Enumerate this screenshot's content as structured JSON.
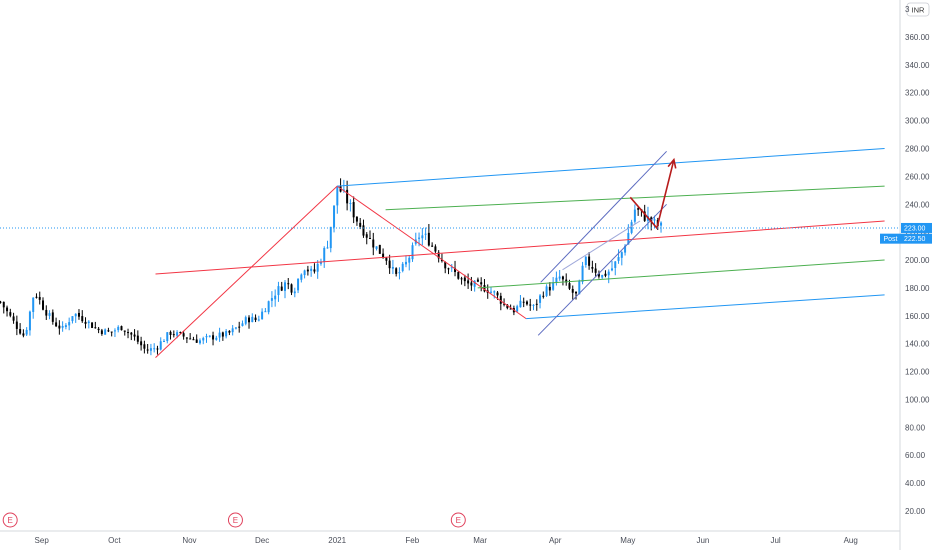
{
  "chart_data": {
    "type": "candlestick",
    "currency": "INR",
    "y_axis": {
      "range": [
        10,
        390
      ],
      "ticks": [
        "20.00",
        "40.00",
        "60.00",
        "80.00",
        "100.00",
        "120.00",
        "140.00",
        "160.00",
        "180.00",
        "200.00",
        "220.00",
        "240.00",
        "260.00",
        "280.00",
        "300.00",
        "320.00",
        "340.00",
        "360.00"
      ],
      "tick_values": [
        20,
        40,
        60,
        80,
        100,
        120,
        140,
        160,
        180,
        200,
        220,
        240,
        260,
        280,
        300,
        320,
        340,
        360
      ],
      "top_label": "3"
    },
    "x_axis": {
      "labels": [
        "Sep",
        "Oct",
        "Nov",
        "Dec",
        "2021",
        "Feb",
        "Mar",
        "Apr",
        "May",
        "Jun",
        "Jul",
        "Aug"
      ],
      "label_days": [
        17,
        47,
        78,
        108,
        139,
        170,
        198,
        229,
        259,
        290,
        320,
        351
      ],
      "day_range": [
        0,
        365
      ]
    },
    "price_lines": [
      {
        "value": 223.0,
        "label": "223.00",
        "color": "#2196f3"
      },
      {
        "value": 222.5,
        "label": "222.50",
        "color": "#2196f3",
        "tag": "Post"
      }
    ],
    "earnings_days": [
      4,
      97,
      189
    ],
    "earnings_marker": "E",
    "price_path": [
      [
        0,
        170
      ],
      [
        6,
        154
      ],
      [
        10,
        145
      ],
      [
        14,
        178
      ],
      [
        18,
        165
      ],
      [
        22,
        155
      ],
      [
        26,
        150
      ],
      [
        30,
        162
      ],
      [
        35,
        157
      ],
      [
        40,
        150
      ],
      [
        45,
        148
      ],
      [
        50,
        152
      ],
      [
        55,
        145
      ],
      [
        60,
        135
      ],
      [
        64,
        137
      ],
      [
        70,
        148
      ],
      [
        76,
        145
      ],
      [
        82,
        142
      ],
      [
        88,
        145
      ],
      [
        94,
        147
      ],
      [
        98,
        152
      ],
      [
        102,
        158
      ],
      [
        106,
        157
      ],
      [
        110,
        168
      ],
      [
        114,
        178
      ],
      [
        118,
        184
      ],
      [
        121,
        178
      ],
      [
        125,
        196
      ],
      [
        129,
        190
      ],
      [
        132,
        200
      ],
      [
        135,
        212
      ],
      [
        138,
        240
      ],
      [
        139,
        253
      ],
      [
        142,
        246
      ],
      [
        145,
        236
      ],
      [
        148,
        226
      ],
      [
        152,
        216
      ],
      [
        156,
        207
      ],
      [
        160,
        200
      ],
      [
        163,
        188
      ],
      [
        167,
        196
      ],
      [
        170,
        207
      ],
      [
        173,
        218
      ],
      [
        176,
        216
      ],
      [
        180,
        206
      ],
      [
        184,
        196
      ],
      [
        188,
        190
      ],
      [
        192,
        183
      ],
      [
        196,
        182
      ],
      [
        200,
        180
      ],
      [
        204,
        176
      ],
      [
        208,
        168
      ],
      [
        212,
        164
      ],
      [
        216,
        170
      ],
      [
        220,
        166
      ],
      [
        224,
        177
      ],
      [
        228,
        182
      ],
      [
        231,
        188
      ],
      [
        234,
        180
      ],
      [
        238,
        174
      ],
      [
        241,
        200
      ],
      [
        244,
        196
      ],
      [
        248,
        188
      ],
      [
        252,
        193
      ],
      [
        256,
        203
      ],
      [
        259,
        218
      ],
      [
        262,
        237
      ],
      [
        265,
        232
      ],
      [
        268,
        229
      ],
      [
        271,
        225
      ],
      [
        274,
        223
      ]
    ],
    "drawings": [
      {
        "kind": "zigzag",
        "color": "#f23645",
        "points": [
          [
            64,
            130
          ],
          [
            139,
            253
          ],
          [
            217,
            158
          ]
        ]
      },
      {
        "kind": "median-line",
        "color": "#f23645",
        "points": [
          [
            64,
            190
          ],
          [
            365,
            228
          ]
        ]
      },
      {
        "kind": "fork-line",
        "color": "#2196f3",
        "points": [
          [
            139,
            253
          ],
          [
            365,
            280
          ]
        ]
      },
      {
        "kind": "fork-line",
        "color": "#2196f3",
        "points": [
          [
            217,
            158
          ],
          [
            365,
            175
          ]
        ]
      },
      {
        "kind": "fork-line",
        "color": "#4caf50",
        "points": [
          [
            159,
            236
          ],
          [
            365,
            253
          ]
        ]
      },
      {
        "kind": "fork-line",
        "color": "#4caf50",
        "points": [
          [
            197,
            180
          ],
          [
            365,
            200
          ]
        ]
      },
      {
        "kind": "channel",
        "color": "#5c6bc0",
        "points": [
          [
            223,
            184
          ],
          [
            275,
            278
          ]
        ]
      },
      {
        "kind": "channel",
        "color": "#5c6bc0",
        "points": [
          [
            222,
            146
          ],
          [
            275,
            240
          ]
        ]
      },
      {
        "kind": "channel-fill-edge",
        "color": "#9fa8da",
        "points": [
          [
            232,
            193
          ],
          [
            264,
            228
          ]
        ]
      },
      {
        "kind": "projection",
        "color": "#b71c1c",
        "points": [
          [
            260,
            245
          ],
          [
            271,
            223
          ],
          [
            278,
            272
          ]
        ]
      }
    ]
  }
}
